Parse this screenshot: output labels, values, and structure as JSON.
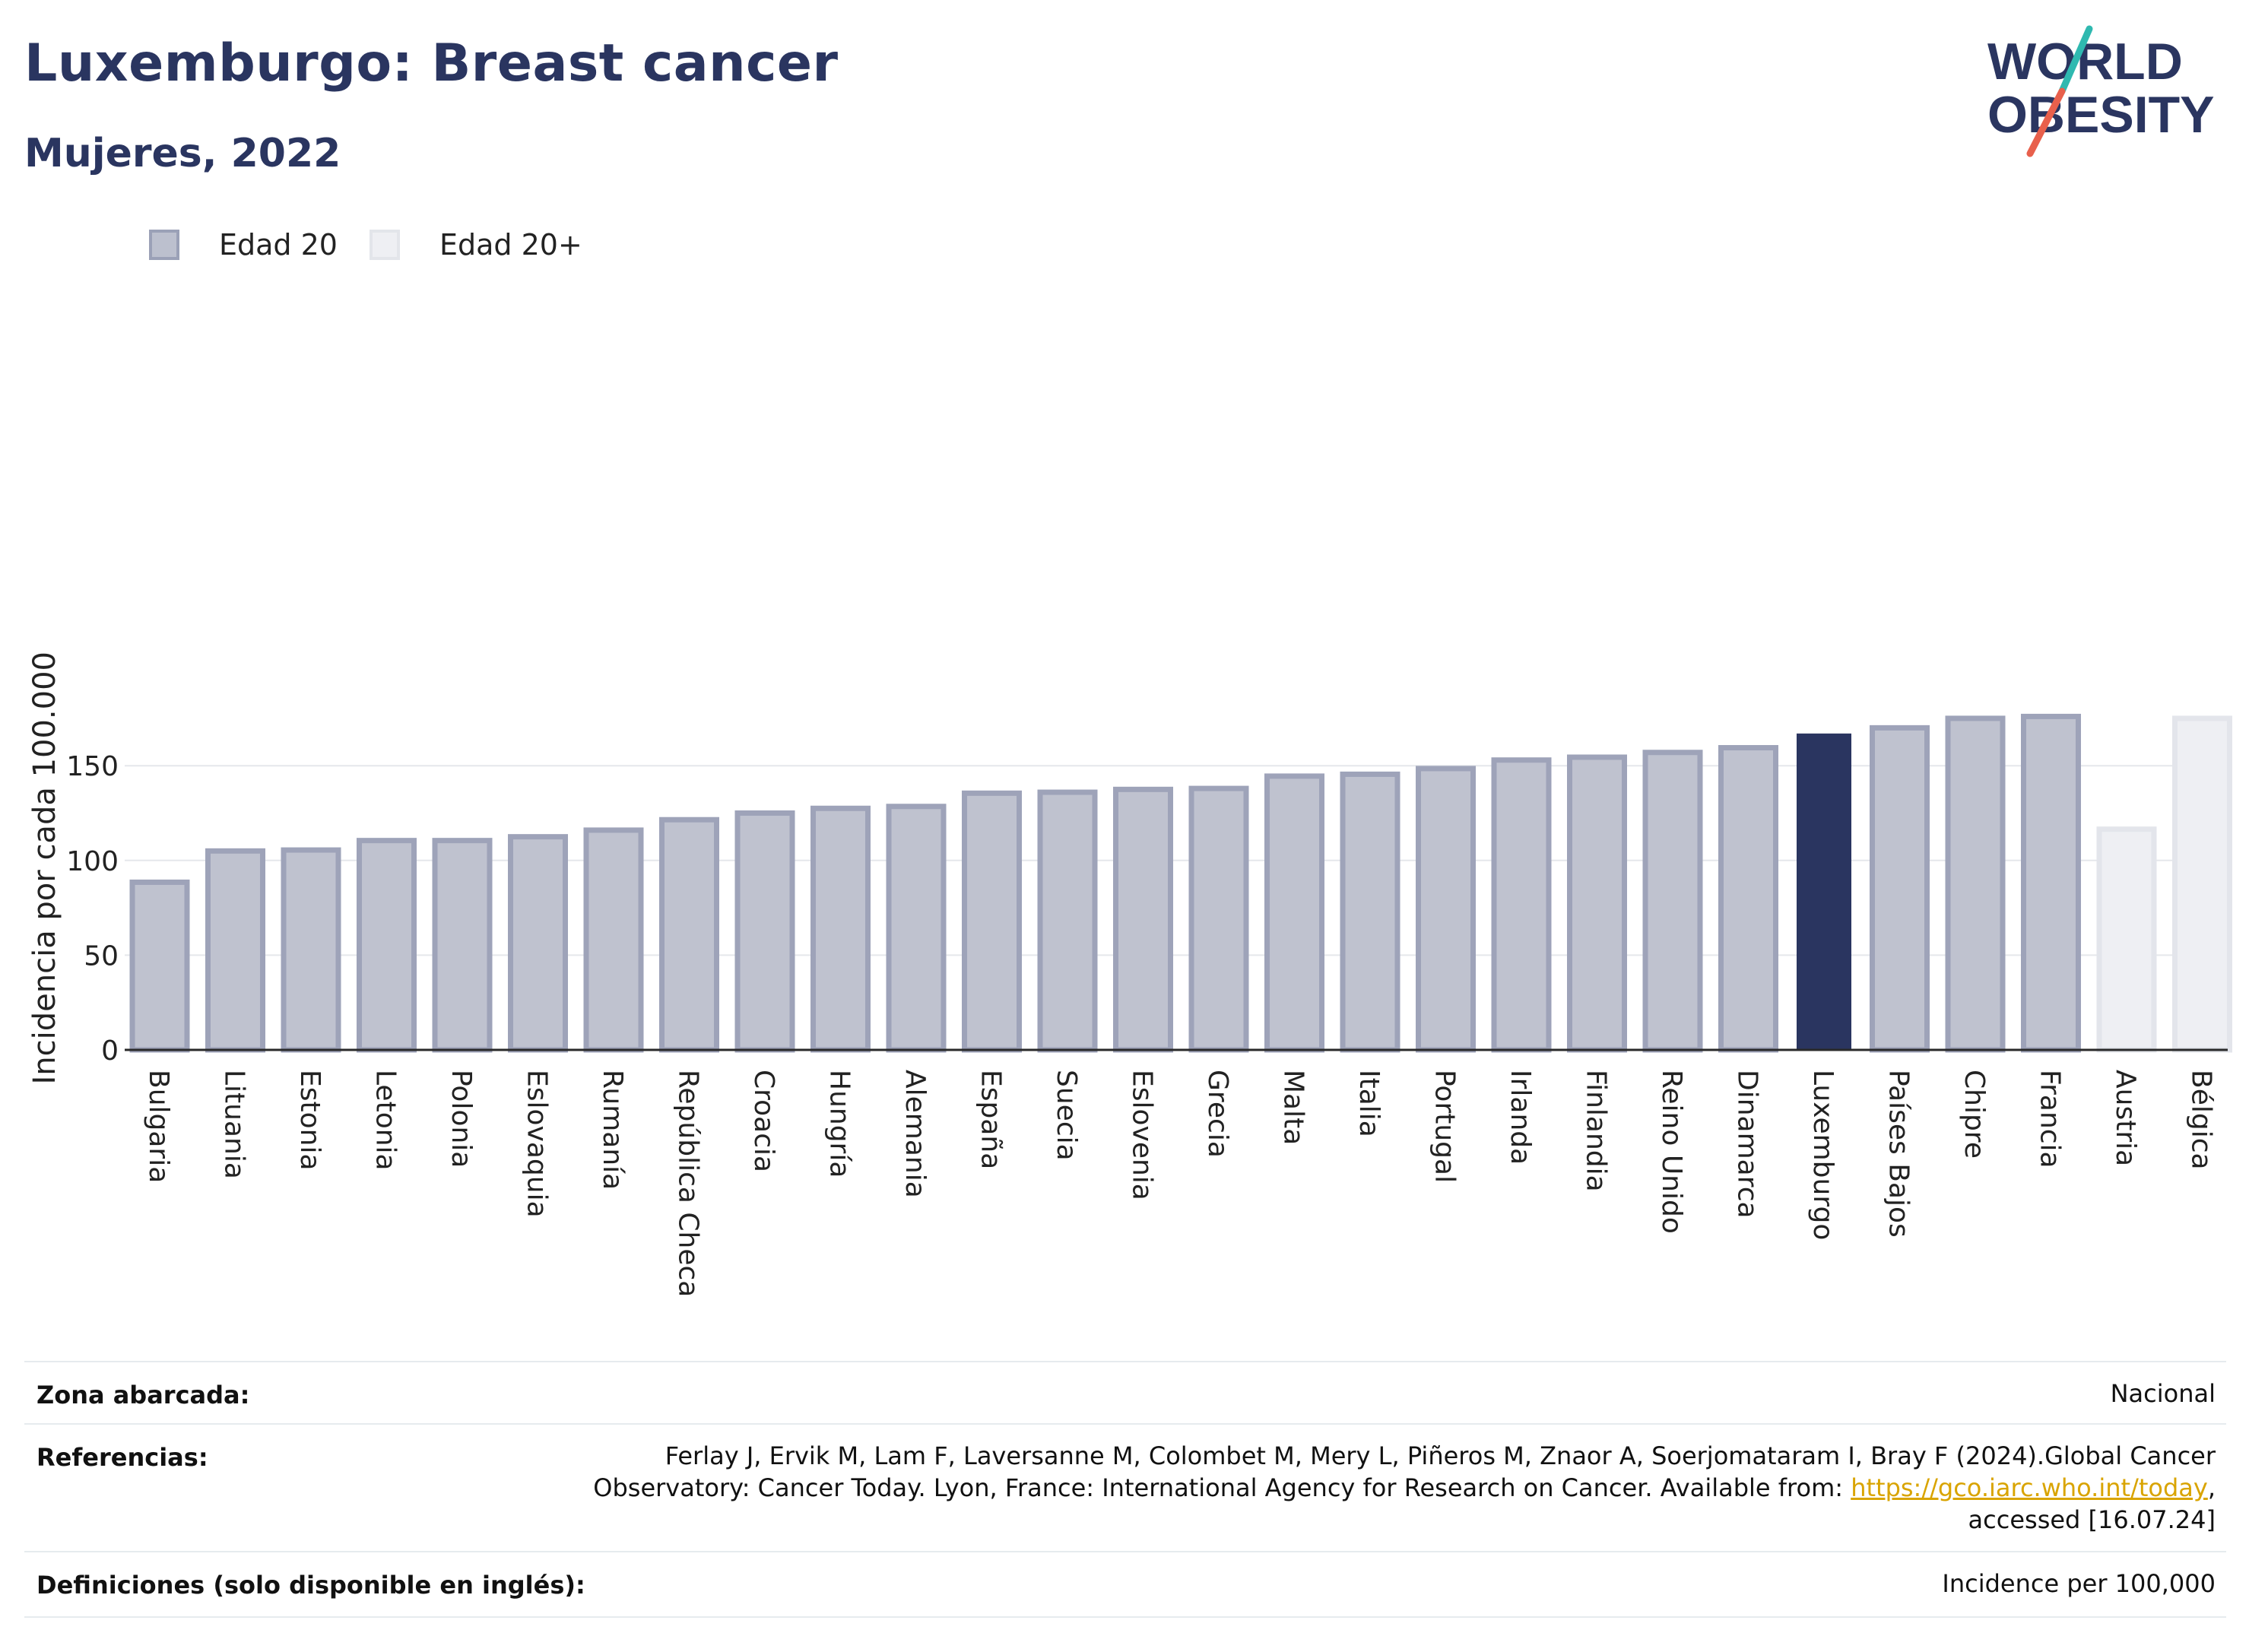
{
  "header": {
    "title": "Luxemburgo: Breast cancer",
    "subtitle": "Mujeres, 2022"
  },
  "logo": {
    "line1": "WORLD",
    "line2": "OBESITY",
    "slash_top_color": "#2fb9b0",
    "slash_bottom_color": "#e8604c"
  },
  "legend": {
    "items": [
      {
        "label": "Edad 20",
        "color": "#bcc0ce",
        "border": "#9ba1b7"
      },
      {
        "label": "Edad 20+",
        "color": "#eeeff3",
        "border": "#e3e5ea"
      }
    ]
  },
  "colors": {
    "default_fill": "#bfc2cf",
    "default_stroke": "#9ea3b9",
    "highlight_fill": "#2a3560",
    "light_fill": "#eeeff3",
    "light_stroke": "#e3e5eb",
    "grid": "#e5e7eb",
    "axis": "#2a2a2a"
  },
  "chart_data": {
    "type": "bar",
    "ylabel": "Incidencia por cada 100.000",
    "xlabel": "",
    "ylim": [
      0,
      190
    ],
    "yticks": [
      0,
      50,
      100,
      150
    ],
    "grid": "horizontal",
    "legend_position": "top-left",
    "categories": [
      "Bulgaria",
      "Lituania",
      "Estonia",
      "Letonia",
      "Polonia",
      "Eslovaquia",
      "Rumanía",
      "República Checa",
      "Croacia",
      "Hungría",
      "Alemania",
      "España",
      "Suecia",
      "Eslovenia",
      "Grecia",
      "Malta",
      "Italia",
      "Portugal",
      "Irlanda",
      "Finlandia",
      "Reino Unido",
      "Dinamarca",
      "Luxemburgo",
      "Países Bajos",
      "Chipre",
      "Francia",
      "Austria",
      "Bélgica"
    ],
    "values": [
      88.5,
      105,
      105.5,
      110.5,
      110.5,
      112.5,
      116,
      121.5,
      125,
      127.5,
      128.5,
      135.5,
      136,
      137.5,
      138,
      144.5,
      145.5,
      148.5,
      153,
      154.5,
      157,
      159.5,
      167,
      170,
      175,
      176,
      116.5,
      175
    ],
    "series_by_bar": [
      "Edad 20",
      "Edad 20",
      "Edad 20",
      "Edad 20",
      "Edad 20",
      "Edad 20",
      "Edad 20",
      "Edad 20",
      "Edad 20",
      "Edad 20",
      "Edad 20",
      "Edad 20",
      "Edad 20",
      "Edad 20",
      "Edad 20",
      "Edad 20",
      "Edad 20",
      "Edad 20",
      "Edad 20",
      "Edad 20",
      "Edad 20",
      "Edad 20",
      "Edad 20",
      "Edad 20",
      "Edad 20",
      "Edad 20",
      "Edad 20+",
      "Edad 20+"
    ],
    "highlight": "Luxemburgo"
  },
  "footer": {
    "rows": [
      {
        "label": "Zona abarcada:",
        "value_lines": [
          "Nacional"
        ]
      },
      {
        "label": "Referencias:",
        "value_lines": [
          "Ferlay J, Ervik M, Lam F, Laversanne M, Colombet M, Mery L, Piñeros M, Znaor A, Soerjomataram I, Bray F (2024).Global Cancer",
          "Observatory: Cancer Today. Lyon, France: International Agency for Research on Cancer. Available from: ",
          "https://gco.iarc.who.int/today",
          ",",
          "accessed [16.07.24]"
        ]
      },
      {
        "label": "Definiciones (solo disponible en inglés):",
        "value_lines": [
          "Incidence per 100,000"
        ]
      }
    ]
  }
}
